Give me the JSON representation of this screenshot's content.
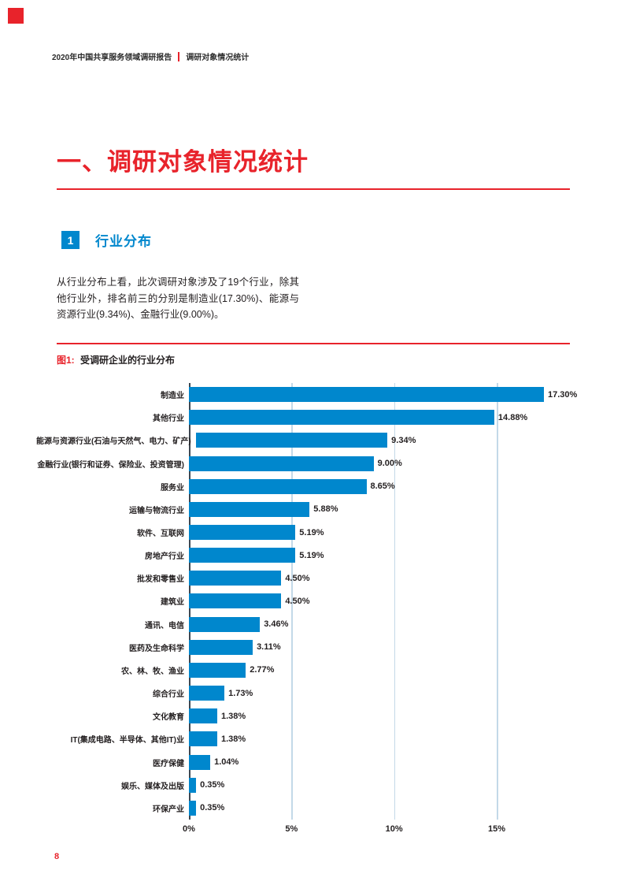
{
  "page": {
    "number": "8"
  },
  "header": {
    "report_title": "2020年中国共享服务领域调研报告",
    "section_title": "调研对象情况统计"
  },
  "section": {
    "title": "一、调研对象情况统计",
    "badge_number": "1",
    "subsection_title": "行业分布",
    "paragraph": "从行业分布上看，此次调研对象涉及了19个行业，除其他行业外，排名前三的分别是制造业(17.30%)、能源与资源行业(9.34%)、金融行业(9.00%)。"
  },
  "figure": {
    "label": "图1:",
    "caption": "受调研企业的行业分布"
  },
  "chart_data": {
    "type": "bar",
    "orientation": "horizontal",
    "title": "受调研企业的行业分布",
    "categories": [
      "制造业",
      "其他行业",
      "能源与资源行业(石油与天然气、电力、矿产)",
      "金融行业(银行和证券、保险业、投资管理)",
      "服务业",
      "运输与物流行业",
      "软件、互联网",
      "房地产行业",
      "批发和零售业",
      "建筑业",
      "通讯、电信",
      "医药及生命科学",
      "农、林、牧、渔业",
      "综合行业",
      "文化教育",
      "IT(集成电路、半导体、其他IT)业",
      "医疗保健",
      "娱乐、媒体及出版",
      "环保产业"
    ],
    "values": [
      17.3,
      14.88,
      9.34,
      9.0,
      8.65,
      5.88,
      5.19,
      5.19,
      4.5,
      4.5,
      3.46,
      3.11,
      2.77,
      1.73,
      1.38,
      1.38,
      1.04,
      0.35,
      0.35
    ],
    "value_labels": [
      "17.30%",
      "14.88%",
      "9.34%",
      "9.00%",
      "8.65%",
      "5.88%",
      "5.19%",
      "5.19%",
      "4.50%",
      "4.50%",
      "3.46%",
      "3.11%",
      "2.77%",
      "1.73%",
      "1.38%",
      "1.38%",
      "1.04%",
      "0.35%",
      "0.35%"
    ],
    "x_ticks": [
      {
        "label": "0%",
        "value": 0
      },
      {
        "label": "5%",
        "value": 5
      },
      {
        "label": "10%",
        "value": 10
      },
      {
        "label": "15%",
        "value": 15
      }
    ],
    "xlim": [
      0,
      18.8
    ],
    "grid": true,
    "legend": false,
    "bar_color": "#0087cd",
    "gridline_color": "#c3d9e8",
    "axis_color": "#3d4852"
  },
  "colors": {
    "accent_red": "#e8232b",
    "accent_blue": "#0087cd",
    "text_dark": "#231f20"
  }
}
